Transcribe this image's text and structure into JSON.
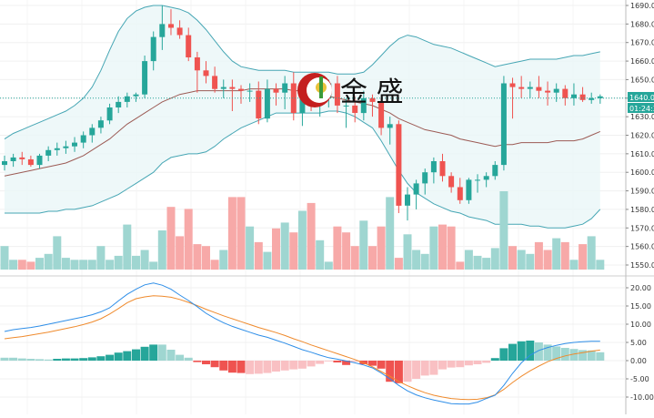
{
  "logo": {
    "text": "金 盛"
  },
  "price_tag": {
    "price": "1640.00",
    "countdown": "01:24:30"
  },
  "colors": {
    "up": "#26a69a",
    "down": "#ef5350",
    "vol_up": "#9fd6d1",
    "vol_down": "#f7a9a8",
    "band": "#46a6b4",
    "band_fill": "#eaf6f7",
    "mid": "#9c5b55",
    "macd": "#2e8ee8",
    "signal": "#ef8a2c",
    "price_line": "#26a69a"
  },
  "chart_data": [
    {
      "type": "candlestick",
      "y_ticks": [
        "1550.00",
        "1560.00",
        "1570.00",
        "1580.00",
        "1590.00",
        "1600.00",
        "1610.00",
        "1620.00",
        "1630.00",
        "1640.00",
        "1650.00",
        "1660.00",
        "1670.00",
        "1680.00",
        "1690.00"
      ],
      "ylim": [
        1548,
        1692
      ],
      "candles": [
        [
          1604,
          1609,
          1601,
          1606
        ],
        [
          1606,
          1610,
          1603,
          1608
        ],
        [
          1608,
          1611,
          1604,
          1607
        ],
        [
          1607,
          1609,
          1603,
          1604
        ],
        [
          1604,
          1610,
          1602,
          1609
        ],
        [
          1609,
          1614,
          1606,
          1612
        ],
        [
          1612,
          1616,
          1609,
          1613
        ],
        [
          1613,
          1617,
          1610,
          1614
        ],
        [
          1614,
          1619,
          1611,
          1616
        ],
        [
          1616,
          1622,
          1613,
          1620
        ],
        [
          1620,
          1626,
          1616,
          1624
        ],
        [
          1624,
          1630,
          1621,
          1628
        ],
        [
          1628,
          1637,
          1626,
          1635
        ],
        [
          1635,
          1641,
          1632,
          1638
        ],
        [
          1638,
          1643,
          1635,
          1641
        ],
        [
          1641,
          1643,
          1638,
          1642
        ],
        [
          1642,
          1663,
          1640,
          1660
        ],
        [
          1660,
          1676,
          1655,
          1673
        ],
        [
          1673,
          1690,
          1666,
          1680
        ],
        [
          1680,
          1688,
          1674,
          1678
        ],
        [
          1678,
          1682,
          1672,
          1674
        ],
        [
          1674,
          1678,
          1660,
          1662
        ],
        [
          1662,
          1665,
          1643,
          1655
        ],
        [
          1655,
          1660,
          1648,
          1652
        ],
        [
          1652,
          1657,
          1643,
          1645
        ],
        [
          1645,
          1650,
          1640,
          1646
        ],
        [
          1646,
          1650,
          1633,
          1645
        ],
        [
          1645,
          1647,
          1637,
          1644
        ],
        [
          1644,
          1648,
          1638,
          1644
        ],
        [
          1644,
          1649,
          1626,
          1629
        ],
        [
          1629,
          1650,
          1627,
          1645
        ],
        [
          1645,
          1648,
          1636,
          1643
        ],
        [
          1643,
          1652,
          1634,
          1648
        ],
        [
          1648,
          1654,
          1628,
          1632
        ],
        [
          1632,
          1641,
          1625,
          1640
        ],
        [
          1640,
          1646,
          1633,
          1636
        ],
        [
          1636,
          1644,
          1630,
          1640
        ],
        [
          1640,
          1650,
          1635,
          1648
        ],
        [
          1648,
          1652,
          1632,
          1636
        ],
        [
          1636,
          1640,
          1624,
          1636
        ],
        [
          1636,
          1641,
          1627,
          1632
        ],
        [
          1632,
          1644,
          1628,
          1640
        ],
        [
          1640,
          1642,
          1630,
          1638
        ],
        [
          1638,
          1640,
          1620,
          1624
        ],
        [
          1624,
          1630,
          1615,
          1626
        ],
        [
          1626,
          1628,
          1578,
          1582
        ],
        [
          1582,
          1592,
          1574,
          1588
        ],
        [
          1588,
          1596,
          1580,
          1594
        ],
        [
          1594,
          1602,
          1588,
          1600
        ],
        [
          1600,
          1608,
          1594,
          1606
        ],
        [
          1606,
          1610,
          1595,
          1598
        ],
        [
          1598,
          1600,
          1589,
          1592
        ],
        [
          1592,
          1597,
          1583,
          1585
        ],
        [
          1585,
          1597,
          1583,
          1596
        ],
        [
          1596,
          1599,
          1589,
          1596
        ],
        [
          1596,
          1600,
          1592,
          1598
        ],
        [
          1598,
          1606,
          1596,
          1604
        ],
        [
          1604,
          1652,
          1601,
          1648
        ],
        [
          1648,
          1651,
          1629,
          1646
        ],
        [
          1646,
          1652,
          1640,
          1645
        ],
        [
          1645,
          1649,
          1640,
          1646
        ],
        [
          1646,
          1652,
          1640,
          1644
        ],
        [
          1644,
          1649,
          1636,
          1643
        ],
        [
          1643,
          1648,
          1638,
          1645
        ],
        [
          1645,
          1647,
          1636,
          1640
        ],
        [
          1640,
          1648,
          1636,
          1642
        ],
        [
          1642,
          1646,
          1638,
          1639
        ],
        [
          1639,
          1643,
          1637,
          1640
        ],
        [
          1640,
          1642,
          1637,
          1641
        ]
      ],
      "volume": [
        12,
        5,
        5,
        4,
        6,
        8,
        17,
        6,
        5,
        5,
        5,
        12,
        5,
        7,
        23,
        7,
        10,
        4,
        20,
        32,
        17,
        31,
        13,
        12,
        5,
        10,
        37,
        37,
        22,
        14,
        9,
        21,
        24,
        19,
        30,
        34,
        15,
        4,
        22,
        19,
        12,
        25,
        12,
        22,
        37,
        6,
        18,
        10,
        8,
        22,
        23,
        22,
        4,
        10,
        7,
        6,
        11,
        40,
        12,
        10,
        8,
        14,
        10,
        16,
        14,
        5,
        13,
        17,
        5
      ],
      "vol_colors": [
        "u",
        "u",
        "d",
        "d",
        "u",
        "u",
        "u",
        "u",
        "u",
        "u",
        "u",
        "u",
        "u",
        "u",
        "u",
        "u",
        "u",
        "u",
        "u",
        "d",
        "d",
        "d",
        "d",
        "d",
        "d",
        "u",
        "d",
        "d",
        "u",
        "d",
        "u",
        "d",
        "u",
        "d",
        "u",
        "d",
        "u",
        "u",
        "d",
        "d",
        "d",
        "u",
        "d",
        "d",
        "u",
        "d",
        "u",
        "u",
        "u",
        "u",
        "d",
        "d",
        "d",
        "u",
        "u",
        "u",
        "u",
        "u",
        "d",
        "u",
        "u",
        "d",
        "d",
        "u",
        "d",
        "u",
        "d",
        "u",
        "u"
      ],
      "bb_upper": [
        1618,
        1621,
        1623,
        1625,
        1627,
        1629,
        1631,
        1633,
        1636,
        1640,
        1646,
        1655,
        1666,
        1676,
        1683,
        1687,
        1689,
        1690,
        1690,
        1689,
        1688,
        1686,
        1682,
        1677,
        1671,
        1665,
        1660,
        1657,
        1656,
        1655,
        1655,
        1655,
        1655,
        1654,
        1654,
        1654,
        1654,
        1654,
        1653,
        1653,
        1653,
        1654,
        1658,
        1663,
        1668,
        1672,
        1674,
        1673,
        1671,
        1669,
        1668,
        1667,
        1665,
        1663,
        1661,
        1659,
        1657,
        1658,
        1659,
        1660,
        1661,
        1661,
        1661,
        1661,
        1662,
        1663,
        1663,
        1664,
        1665
      ],
      "bb_mid": [
        1598,
        1599,
        1600,
        1601,
        1602,
        1603,
        1604,
        1605,
        1607,
        1609,
        1612,
        1615,
        1618,
        1622,
        1626,
        1629,
        1632,
        1635,
        1638,
        1640,
        1642,
        1643,
        1644,
        1644,
        1644,
        1644,
        1644,
        1644,
        1645,
        1645,
        1645,
        1645,
        1645,
        1644,
        1644,
        1643,
        1642,
        1641,
        1640,
        1639,
        1638,
        1637,
        1636,
        1634,
        1632,
        1629,
        1627,
        1625,
        1623,
        1622,
        1621,
        1620,
        1618,
        1617,
        1616,
        1615,
        1614,
        1615,
        1615,
        1616,
        1616,
        1616,
        1616,
        1617,
        1617,
        1617,
        1618,
        1620,
        1622
      ],
      "bb_lower": [
        1578,
        1578,
        1578,
        1578,
        1578,
        1579,
        1579,
        1580,
        1580,
        1581,
        1582,
        1584,
        1586,
        1588,
        1591,
        1594,
        1597,
        1600,
        1605,
        1608,
        1609,
        1610,
        1610,
        1611,
        1614,
        1618,
        1621,
        1624,
        1626,
        1628,
        1630,
        1632,
        1632,
        1632,
        1632,
        1632,
        1632,
        1633,
        1633,
        1632,
        1630,
        1627,
        1624,
        1617,
        1609,
        1601,
        1594,
        1589,
        1586,
        1583,
        1581,
        1579,
        1578,
        1576,
        1575,
        1574,
        1572,
        1572,
        1572,
        1572,
        1571,
        1571,
        1570,
        1570,
        1570,
        1571,
        1572,
        1575,
        1580
      ],
      "last_price": 1640
    },
    {
      "type": "macd",
      "y_ticks": [
        "-15.00",
        "-10.00",
        "-5.00",
        "0.00",
        "5.00",
        "10.00",
        "15.00",
        "20.00"
      ],
      "ylim": [
        -15.5,
        22
      ],
      "macd": [
        8,
        8.5,
        8.8,
        9.1,
        9.5,
        10,
        10.5,
        11,
        11.5,
        12,
        12.6,
        13.4,
        14.5,
        16.4,
        18.2,
        19.6,
        20.8,
        21.3,
        20.7,
        19.6,
        18,
        16.5,
        14.8,
        13,
        11.6,
        10.4,
        9.4,
        8.6,
        7.8,
        7,
        6.4,
        5.6,
        4.8,
        3.9,
        3,
        2.3,
        1.5,
        0.8,
        0.4,
        -0.1,
        -0.6,
        -1.2,
        -2,
        -3.4,
        -5,
        -6.8,
        -8.3,
        -9.4,
        -10.2,
        -10.8,
        -11.3,
        -11.8,
        -11.9,
        -11.9,
        -11.4,
        -10.4,
        -9.5,
        -6.8,
        -3.5,
        -0.6,
        1.5,
        2.8,
        3.6,
        4.2,
        4.7,
        5,
        5.2,
        5.3,
        5.3
      ],
      "signal": [
        6,
        6.3,
        6.6,
        7,
        7.4,
        7.8,
        8.3,
        8.8,
        9.3,
        9.9,
        10.6,
        11.5,
        12.8,
        14.3,
        15.9,
        17,
        17.5,
        17.8,
        17.7,
        17.4,
        16.8,
        16,
        15.1,
        14.1,
        13.2,
        12.3,
        11.5,
        10.7,
        9.9,
        9.1,
        8.4,
        7.7,
        6.9,
        6,
        5.2,
        4.3,
        3.5,
        2.7,
        1.9,
        1.1,
        0.3,
        -0.6,
        -1.7,
        -3,
        -4.3,
        -5.7,
        -6.9,
        -7.9,
        -8.8,
        -9.5,
        -10,
        -10.4,
        -10.6,
        -10.7,
        -10.6,
        -10.2,
        -9.4,
        -7.9,
        -6,
        -4.3,
        -2.8,
        -1.5,
        -0.3,
        0.6,
        1.3,
        1.8,
        2.2,
        2.6,
        2.9
      ],
      "hist": [
        0.8,
        0.8,
        0.6,
        0.5,
        0.4,
        0.3,
        0.5,
        0.6,
        0.6,
        0.7,
        0.9,
        1.2,
        1.6,
        2.2,
        2.6,
        3.1,
        3.8,
        4.4,
        4.4,
        3,
        1.6,
        0.8,
        -0.4,
        -1,
        -1.8,
        -2.7,
        -3.3,
        -3.4,
        -3.7,
        -3.6,
        -3.4,
        -3,
        -2.7,
        -2.4,
        -2.2,
        -1.6,
        -0.9,
        -0.2,
        -0.5,
        -1.2,
        -0.3,
        -1,
        -1.4,
        -2.2,
        -5.8,
        -6.2,
        -5.8,
        -5,
        -4.1,
        -3.9,
        -2.4,
        -1.9,
        -1.8,
        -1.3,
        -1,
        -0.6,
        0.7,
        3.4,
        4.6,
        5.3,
        5.5,
        5,
        4.4,
        3.9,
        3.5,
        3.2,
        2.9,
        2.8,
        2.3
      ],
      "hist_colors": [
        "l",
        "l",
        "l",
        "l",
        "l",
        "l",
        "d",
        "d",
        "d",
        "d",
        "d",
        "d",
        "d",
        "d",
        "d",
        "d",
        "d",
        "d",
        "l",
        "l",
        "l",
        "l",
        "r",
        "r",
        "r",
        "r",
        "r",
        "r",
        "p",
        "p",
        "p",
        "p",
        "p",
        "p",
        "p",
        "p",
        "p",
        "p",
        "r",
        "r",
        "p",
        "r",
        "r",
        "r",
        "r",
        "r",
        "p",
        "p",
        "p",
        "p",
        "p",
        "p",
        "p",
        "p",
        "p",
        "p",
        "d",
        "d",
        "d",
        "d",
        "d",
        "l",
        "l",
        "l",
        "l",
        "l",
        "l",
        "l",
        "l"
      ]
    }
  ]
}
